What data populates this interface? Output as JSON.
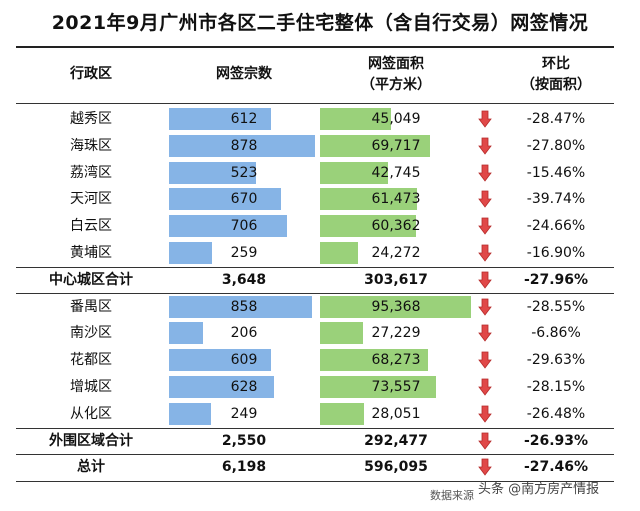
{
  "title": "2021年9月广州市各区二手住宅整体（含自行交易）网签情况",
  "headers": {
    "district": "行政区",
    "count": "网签宗数",
    "area_l1": "网签面积",
    "area_l2": "（平方米）",
    "change_l1": "环比",
    "change_l2": "（按面积）"
  },
  "colors": {
    "count_bar": "#86b4e6",
    "area_bar": "#9ad17a",
    "down_arrow": "#e04848"
  },
  "rows": [
    {
      "district": "越秀区",
      "count": "612",
      "area": "45,049",
      "change": "-28.47%",
      "count_num": 612,
      "area_num": 45049,
      "trend": "down",
      "summary": false
    },
    {
      "district": "海珠区",
      "count": "878",
      "area": "69,717",
      "change": "-27.80%",
      "count_num": 878,
      "area_num": 69717,
      "trend": "down",
      "summary": false
    },
    {
      "district": "荔湾区",
      "count": "523",
      "area": "42,745",
      "change": "-15.46%",
      "count_num": 523,
      "area_num": 42745,
      "trend": "down",
      "summary": false
    },
    {
      "district": "天河区",
      "count": "670",
      "area": "61,473",
      "change": "-39.74%",
      "count_num": 670,
      "area_num": 61473,
      "trend": "down",
      "summary": false
    },
    {
      "district": "白云区",
      "count": "706",
      "area": "60,362",
      "change": "-24.66%",
      "count_num": 706,
      "area_num": 60362,
      "trend": "down",
      "summary": false
    },
    {
      "district": "黄埔区",
      "count": "259",
      "area": "24,272",
      "change": "-16.90%",
      "count_num": 259,
      "area_num": 24272,
      "trend": "down",
      "summary": false
    },
    {
      "district": "中心城区合计",
      "count": "3,648",
      "area": "303,617",
      "change": "-27.96%",
      "trend": "down",
      "summary": true
    },
    {
      "district": "番禺区",
      "count": "858",
      "area": "95,368",
      "change": "-28.55%",
      "count_num": 858,
      "area_num": 95368,
      "trend": "down",
      "summary": false
    },
    {
      "district": "南沙区",
      "count": "206",
      "area": "27,229",
      "change": "-6.86%",
      "count_num": 206,
      "area_num": 27229,
      "trend": "down",
      "summary": false
    },
    {
      "district": "花都区",
      "count": "609",
      "area": "68,273",
      "change": "-29.63%",
      "count_num": 609,
      "area_num": 68273,
      "trend": "down",
      "summary": false
    },
    {
      "district": "增城区",
      "count": "628",
      "area": "73,557",
      "change": "-28.15%",
      "count_num": 628,
      "area_num": 73557,
      "trend": "down",
      "summary": false
    },
    {
      "district": "从化区",
      "count": "249",
      "area": "28,051",
      "change": "-26.48%",
      "count_num": 249,
      "area_num": 28051,
      "trend": "down",
      "summary": false
    },
    {
      "district": "外围区域合计",
      "count": "2,550",
      "area": "292,477",
      "change": "-26.93%",
      "trend": "down",
      "summary": true
    },
    {
      "district": "总计",
      "count": "6,198",
      "area": "596,095",
      "change": "-27.46%",
      "trend": "down",
      "summary": true
    }
  ],
  "footer": "数据来源",
  "watermark": "头条 @南方房产情报"
}
